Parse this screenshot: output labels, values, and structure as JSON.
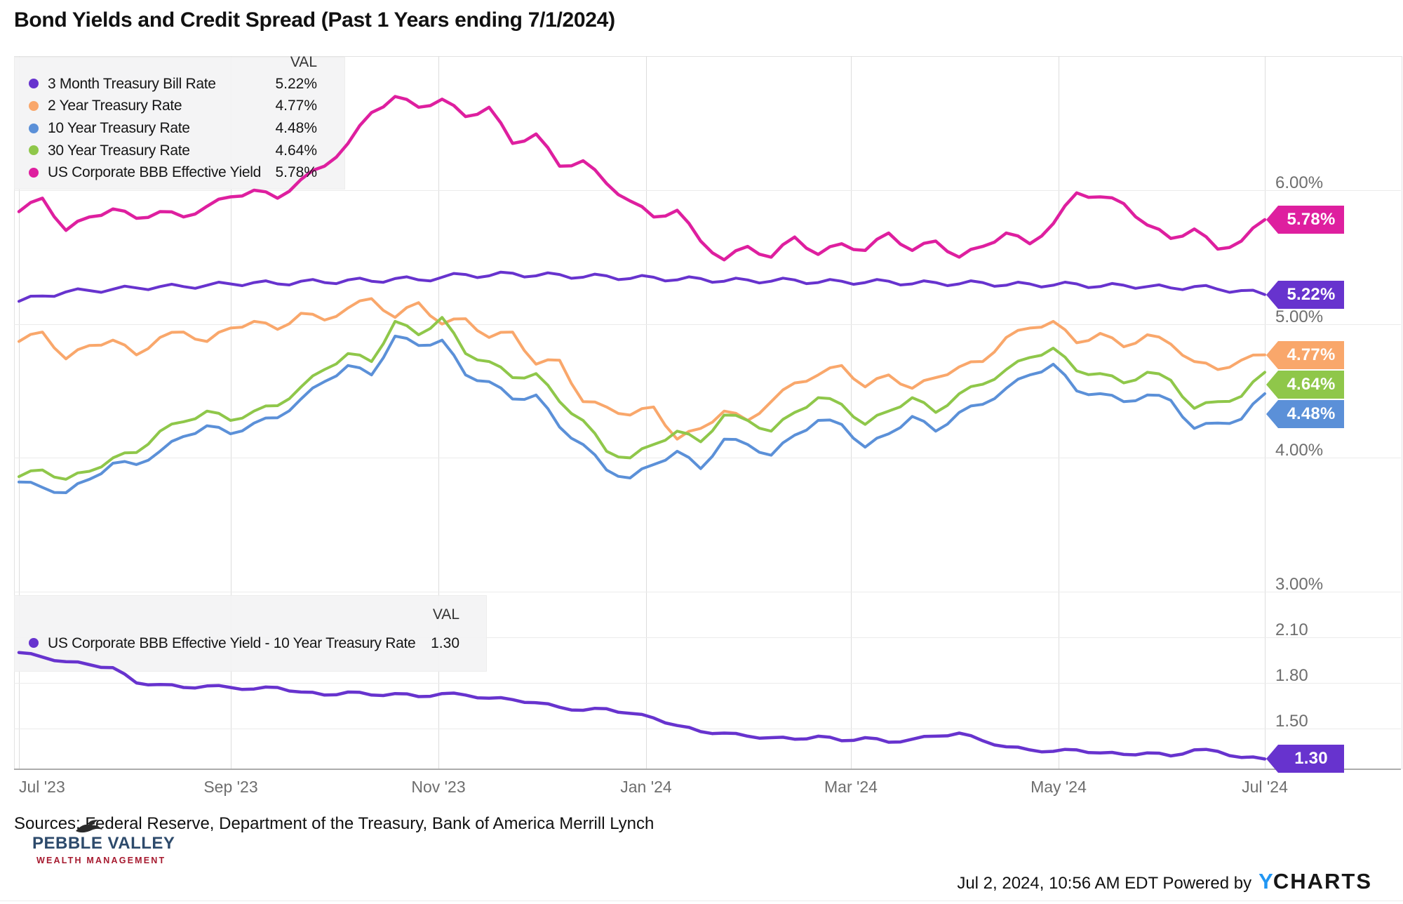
{
  "title": "Bond Yields and Credit Spread (Past 1 Years ending 7/1/2024)",
  "sources": "Sources: Federal Reserve, Department of the Treasury, Bank of America Merrill Lynch",
  "logo": {
    "name": "PEBBLE VALLEY",
    "tagline": "WEALTH MANAGEMENT",
    "icon": "eagle-silhouette"
  },
  "footer": {
    "timestamp": "Jul 2, 2024, 10:56 AM EDT",
    "powered_by": "Powered by",
    "brand_prefix": "Y",
    "brand_suffix": "CHARTS"
  },
  "colors": {
    "grid": "#EBEBEB",
    "axis_text": "#6E6E6E",
    "legend_bg": "#F3F3F4"
  },
  "chart_data": {
    "type": "line",
    "x_ticks": [
      "Jul '23",
      "Sep '23",
      "Nov '23",
      "Jan '24",
      "Mar '24",
      "May '24",
      "Jul '24"
    ],
    "x_range": [
      "Jul 1 2023",
      "Jul 1 2024"
    ],
    "grid": true,
    "legend_position": "top-left-inside",
    "panels": [
      {
        "legend_header": "VAL",
        "ylim": [
          3.0,
          7.0
        ],
        "y_ticks": [
          {
            "label": "6.00%",
            "value": 6.0
          },
          {
            "label": "5.00%",
            "value": 5.0
          },
          {
            "label": "4.00%",
            "value": 4.0
          },
          {
            "label": "3.00%",
            "value": 3.0
          }
        ],
        "series": [
          {
            "name": "3 Month Treasury Bill Rate",
            "val_label": "5.22%",
            "end_value": 5.22,
            "color": "#6733CE",
            "values": [
              5.17,
              5.21,
              5.24,
              5.25,
              5.26,
              5.27,
              5.28,
              5.28,
              5.29,
              5.3,
              5.31,
              5.3,
              5.32,
              5.31,
              5.33,
              5.32,
              5.34,
              5.33,
              5.35,
              5.37,
              5.36,
              5.38,
              5.36,
              5.37,
              5.35,
              5.36,
              5.34,
              5.35,
              5.33,
              5.34,
              5.32,
              5.33,
              5.32,
              5.33,
              5.31,
              5.32,
              5.31,
              5.32,
              5.3,
              5.31,
              5.3,
              5.31,
              5.29,
              5.3,
              5.29,
              5.3,
              5.28,
              5.29,
              5.28,
              5.27,
              5.28,
              5.26,
              5.25,
              5.22
            ]
          },
          {
            "name": "2 Year Treasury Rate",
            "val_label": "4.77%",
            "end_value": 4.77,
            "color": "#F9A76B",
            "values": [
              4.87,
              4.94,
              4.74,
              4.84,
              4.88,
              4.77,
              4.9,
              4.94,
              4.87,
              4.97,
              5.02,
              4.96,
              5.08,
              5.03,
              5.12,
              5.19,
              5.05,
              5.16,
              5.0,
              5.04,
              4.9,
              4.94,
              4.7,
              4.73,
              4.42,
              4.38,
              4.32,
              4.38,
              4.14,
              4.22,
              4.35,
              4.28,
              4.42,
              4.56,
              4.62,
              4.69,
              4.53,
              4.62,
              4.52,
              4.6,
              4.68,
              4.72,
              4.9,
              4.97,
              5.02,
              4.86,
              4.93,
              4.83,
              4.92,
              4.85,
              4.72,
              4.66,
              4.73,
              4.77
            ]
          },
          {
            "name": "10 Year Treasury Rate",
            "val_label": "4.48%",
            "end_value": 4.48,
            "color": "#5B90D8",
            "values": [
              3.82,
              3.78,
              3.74,
              3.84,
              3.96,
              3.95,
              4.05,
              4.16,
              4.24,
              4.18,
              4.26,
              4.3,
              4.44,
              4.57,
              4.69,
              4.62,
              4.91,
              4.84,
              4.88,
              4.62,
              4.57,
              4.44,
              4.47,
              4.23,
              4.1,
              3.91,
              3.85,
              3.95,
              4.05,
              3.92,
              4.14,
              4.1,
              4.02,
              4.17,
              4.28,
              4.25,
              4.08,
              4.18,
              4.31,
              4.2,
              4.34,
              4.4,
              4.52,
              4.62,
              4.7,
              4.5,
              4.48,
              4.42,
              4.47,
              4.43,
              4.22,
              4.26,
              4.29,
              4.48
            ]
          },
          {
            "name": "30 Year Treasury Rate",
            "val_label": "4.64%",
            "end_value": 4.64,
            "color": "#8FC74A",
            "values": [
              3.86,
              3.91,
              3.84,
              3.9,
              4.0,
              4.04,
              4.2,
              4.27,
              4.35,
              4.28,
              4.35,
              4.39,
              4.53,
              4.66,
              4.78,
              4.72,
              5.02,
              4.92,
              5.05,
              4.78,
              4.72,
              4.6,
              4.63,
              4.42,
              4.28,
              4.05,
              4.0,
              4.1,
              4.2,
              4.12,
              4.32,
              4.28,
              4.2,
              4.34,
              4.45,
              4.4,
              4.25,
              4.35,
              4.45,
              4.34,
              4.48,
              4.55,
              4.66,
              4.75,
              4.82,
              4.65,
              4.63,
              4.56,
              4.64,
              4.58,
              4.37,
              4.42,
              4.46,
              4.64
            ]
          },
          {
            "name": "US Corporate BBB Effective Yield",
            "val_label": "5.78%",
            "end_value": 5.78,
            "color": "#DE1F9F",
            "values": [
              5.84,
              5.94,
              5.7,
              5.8,
              5.86,
              5.79,
              5.84,
              5.8,
              5.88,
              5.95,
              6.0,
              5.94,
              6.08,
              6.18,
              6.35,
              6.58,
              6.7,
              6.62,
              6.68,
              6.55,
              6.62,
              6.35,
              6.42,
              6.18,
              6.22,
              6.05,
              5.92,
              5.8,
              5.85,
              5.62,
              5.48,
              5.58,
              5.5,
              5.65,
              5.52,
              5.6,
              5.55,
              5.68,
              5.55,
              5.62,
              5.5,
              5.58,
              5.68,
              5.6,
              5.75,
              5.98,
              5.95,
              5.9,
              5.74,
              5.64,
              5.71,
              5.56,
              5.62,
              5.78
            ]
          }
        ]
      },
      {
        "legend_header": "VAL",
        "ylim": [
          1.22,
          2.4
        ],
        "y_ticks": [
          {
            "label": "2.10",
            "value": 2.1
          },
          {
            "label": "1.80",
            "value": 1.8
          },
          {
            "label": "1.50",
            "value": 1.5
          }
        ],
        "series": [
          {
            "name": "US Corporate BBB Effective Yield - 10 Year Treasury Rate",
            "val_label": "1.30",
            "end_value": 1.3,
            "color": "#6733CE",
            "values": [
              2.0,
              1.97,
              1.94,
              1.92,
              1.9,
              1.8,
              1.79,
              1.77,
              1.78,
              1.77,
              1.76,
              1.77,
              1.74,
              1.72,
              1.74,
              1.72,
              1.73,
              1.71,
              1.73,
              1.72,
              1.7,
              1.69,
              1.67,
              1.64,
              1.62,
              1.63,
              1.6,
              1.57,
              1.52,
              1.48,
              1.47,
              1.45,
              1.44,
              1.43,
              1.45,
              1.42,
              1.44,
              1.41,
              1.43,
              1.45,
              1.47,
              1.42,
              1.38,
              1.36,
              1.35,
              1.36,
              1.34,
              1.33,
              1.34,
              1.32,
              1.36,
              1.35,
              1.31,
              1.3
            ]
          }
        ]
      }
    ]
  }
}
